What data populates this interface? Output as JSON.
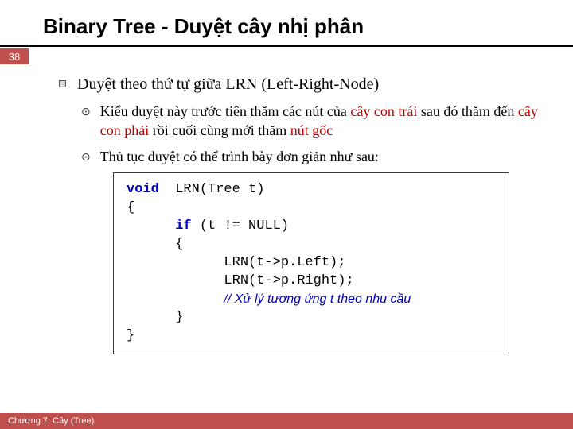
{
  "title": "Binary Tree - Duyệt cây nhị phân",
  "pageNumber": "38",
  "mainBullet": "Duyệt theo thứ tự giữa LRN (Left-Right-Node)",
  "sub1_part1": "Kiểu duyệt này trước tiên thăm các nút của ",
  "sub1_red1": "cây con trái",
  "sub1_part2": " sau đó thăm đến ",
  "sub1_red2": "cây con phải",
  "sub1_part3": " rồi cuối cùng mới thăm ",
  "sub1_red3": "nút gốc",
  "sub2": "Thủ tục duyệt có thể trình bày đơn giản như sau:",
  "code": {
    "l1a": "void",
    "l1b": "  LRN(Tree t)",
    "l2": "{",
    "l3a": "      ",
    "l3b": "if",
    "l3c": " (t != NULL)",
    "l4": "      {",
    "l5": "            LRN(t->p.Left);",
    "l6": "            LRN(t->p.Right);",
    "l7a": "            ",
    "l7b": "// Xử lý tương ứng t theo nhu cầu",
    "l8": "      }",
    "l9": "}"
  },
  "footer": "Chương 7: Cây (Tree)",
  "colors": {
    "accent": "#c0504d",
    "red": "#c00000",
    "keyword": "#0000c0"
  }
}
